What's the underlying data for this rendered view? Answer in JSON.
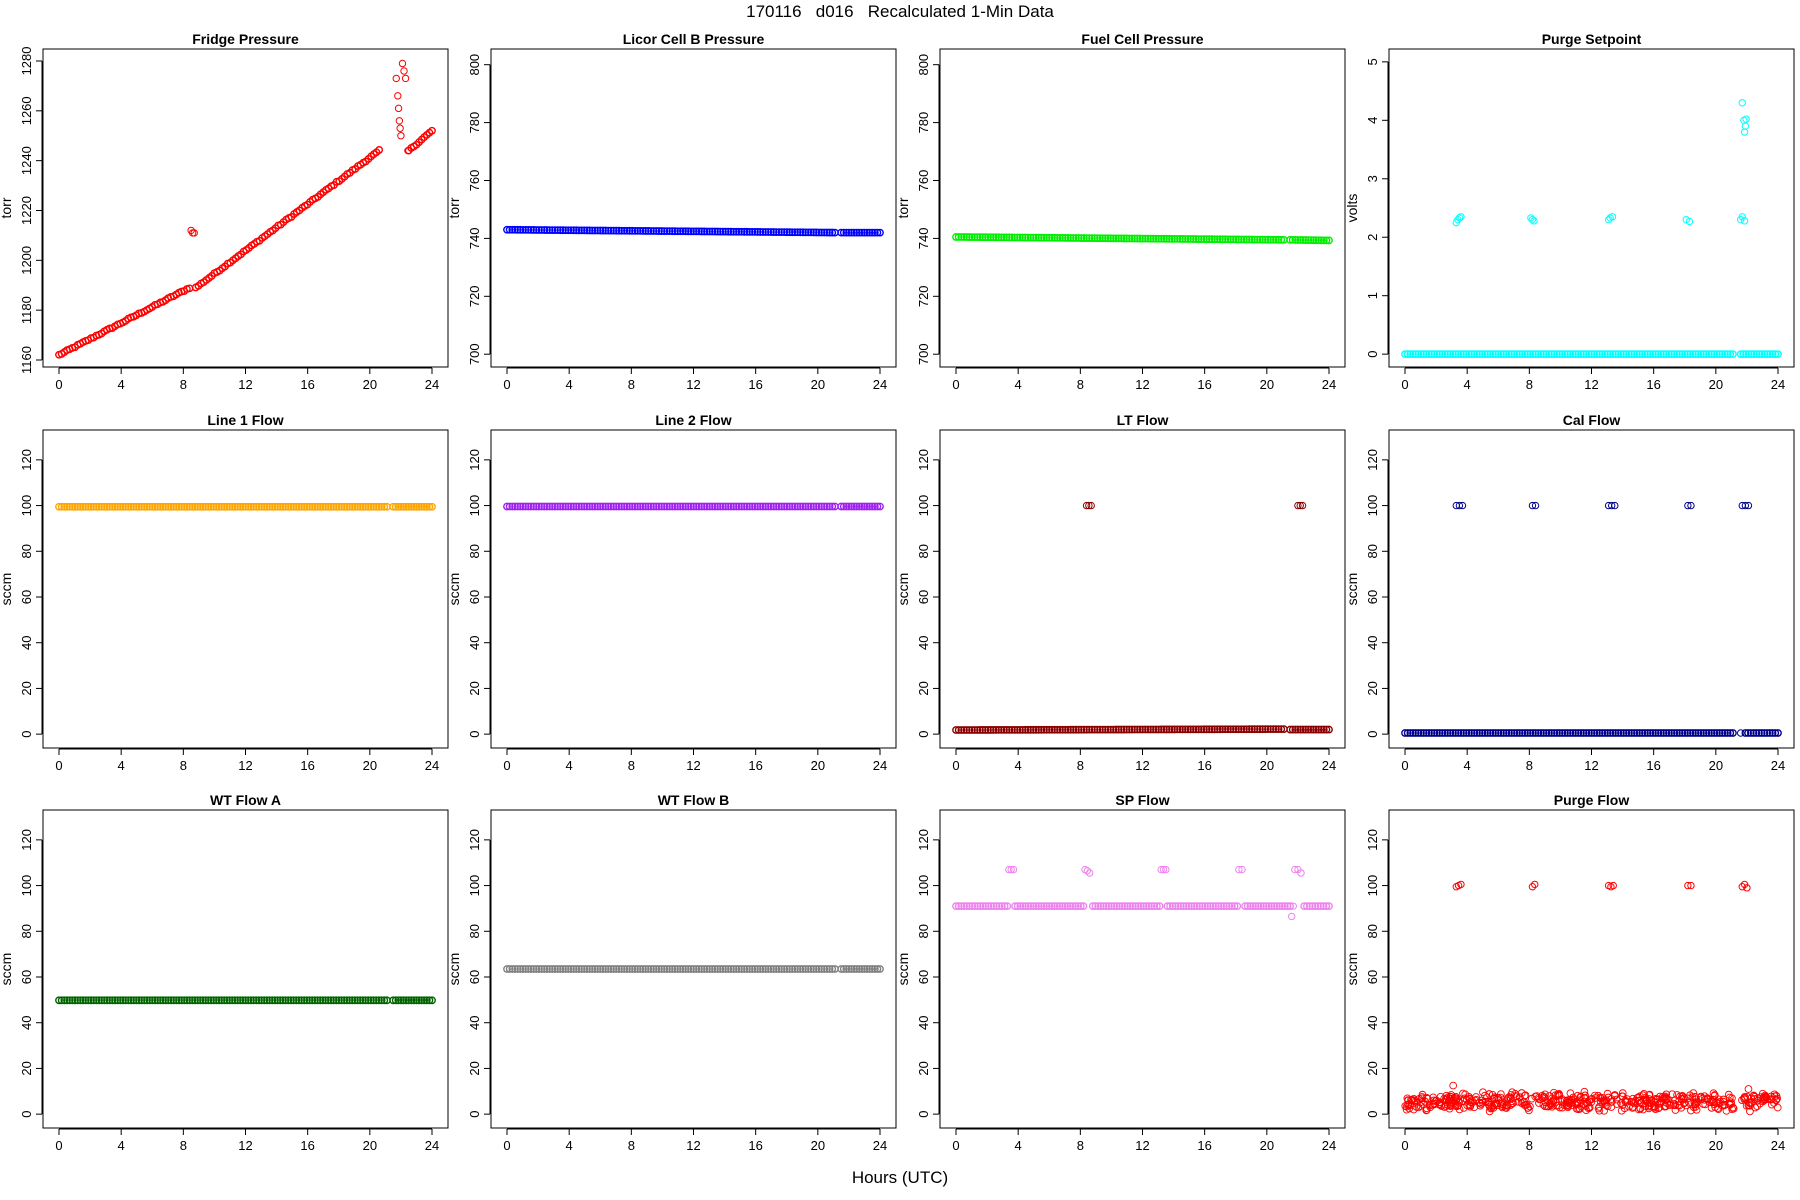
{
  "figure": {
    "title": "170116   d016   Recalculated 1-Min Data",
    "xlabel": "Hours (UTC)"
  },
  "chart_data": [
    {
      "type": "scatter",
      "title": "Fridge Pressure",
      "ylabel": "torr",
      "color": "#ff0000",
      "xlim": [
        0,
        24
      ],
      "ylim": [
        1160,
        1282
      ],
      "xticks": [
        0,
        4,
        8,
        12,
        16,
        20,
        24
      ],
      "yticks": [
        1160,
        1180,
        1200,
        1220,
        1240,
        1260,
        1280
      ],
      "segments": [
        {
          "x0": 0,
          "x1": 8.4,
          "y0": 1162,
          "y1": 1189
        },
        {
          "x0": 8.8,
          "x1": 20.6,
          "y0": 1189,
          "y1": 1244
        },
        {
          "x0": 22.5,
          "x1": 24,
          "y0": 1244,
          "y1": 1252
        }
      ],
      "points": [
        {
          "x": 8.5,
          "y": 1212
        },
        {
          "x": 8.6,
          "y": 1211
        },
        {
          "x": 8.7,
          "y": 1211
        },
        {
          "x": 21.7,
          "y": 1273
        },
        {
          "x": 21.8,
          "y": 1266
        },
        {
          "x": 21.85,
          "y": 1261
        },
        {
          "x": 21.9,
          "y": 1256
        },
        {
          "x": 21.95,
          "y": 1253
        },
        {
          "x": 22.0,
          "y": 1250
        },
        {
          "x": 22.1,
          "y": 1279
        },
        {
          "x": 22.2,
          "y": 1276
        },
        {
          "x": 22.3,
          "y": 1273
        },
        {
          "x": 22.45,
          "y": 1244
        }
      ]
    },
    {
      "type": "scatter",
      "title": "Licor Cell B Pressure",
      "ylabel": "torr",
      "color": "#0000ff",
      "xlim": [
        0,
        24
      ],
      "ylim": [
        698,
        803
      ],
      "xticks": [
        0,
        4,
        8,
        12,
        16,
        20,
        24
      ],
      "yticks": [
        700,
        720,
        740,
        760,
        780,
        800
      ],
      "segments": [
        {
          "x0": 0,
          "x1": 21.1,
          "y0": 743,
          "y1": 742
        },
        {
          "x0": 21.5,
          "x1": 24,
          "y0": 742,
          "y1": 742
        }
      ],
      "points": []
    },
    {
      "type": "scatter",
      "title": "Fuel Cell Pressure",
      "ylabel": "torr",
      "color": "#00ee00",
      "xlim": [
        0,
        24
      ],
      "ylim": [
        698,
        803
      ],
      "xticks": [
        0,
        4,
        8,
        12,
        16,
        20,
        24
      ],
      "yticks": [
        700,
        720,
        740,
        760,
        780,
        800
      ],
      "segments": [
        {
          "x0": 0,
          "x1": 21.1,
          "y0": 740.5,
          "y1": 739.5
        },
        {
          "x0": 21.5,
          "x1": 24,
          "y0": 739.5,
          "y1": 739.3
        }
      ],
      "points": []
    },
    {
      "type": "scatter",
      "title": "Purge Setpoint",
      "ylabel": "volts",
      "color": "#00ffff",
      "xlim": [
        0,
        24
      ],
      "ylim": [
        -0.1,
        5.1
      ],
      "xticks": [
        0,
        4,
        8,
        12,
        16,
        20,
        24
      ],
      "yticks": [
        0,
        1,
        2,
        3,
        4,
        5
      ],
      "segments": [
        {
          "x0": 0,
          "x1": 21.1,
          "y0": 0,
          "y1": 0
        },
        {
          "x0": 21.6,
          "x1": 24,
          "y0": 0,
          "y1": 0
        }
      ],
      "points": [
        {
          "x": 3.3,
          "y": 2.25
        },
        {
          "x": 3.4,
          "y": 2.3
        },
        {
          "x": 3.5,
          "y": 2.33
        },
        {
          "x": 3.6,
          "y": 2.35
        },
        {
          "x": 8.1,
          "y": 2.33
        },
        {
          "x": 8.2,
          "y": 2.3
        },
        {
          "x": 8.3,
          "y": 2.28
        },
        {
          "x": 13.1,
          "y": 2.3
        },
        {
          "x": 13.2,
          "y": 2.33
        },
        {
          "x": 13.35,
          "y": 2.35
        },
        {
          "x": 18.1,
          "y": 2.3
        },
        {
          "x": 18.3,
          "y": 2.27
        },
        {
          "x": 21.6,
          "y": 2.3
        },
        {
          "x": 21.7,
          "y": 2.35
        },
        {
          "x": 21.85,
          "y": 2.28
        },
        {
          "x": 21.7,
          "y": 4.3
        },
        {
          "x": 21.8,
          "y": 4.0
        },
        {
          "x": 21.85,
          "y": 3.8
        },
        {
          "x": 21.9,
          "y": 3.9
        },
        {
          "x": 21.95,
          "y": 4.02
        },
        {
          "x": 21.75,
          "y": 0
        }
      ]
    },
    {
      "type": "scatter",
      "title": "Line 1 Flow",
      "ylabel": "sccm",
      "color": "#ffa500",
      "xlim": [
        0,
        24
      ],
      "ylim": [
        -3,
        130
      ],
      "xticks": [
        0,
        4,
        8,
        12,
        16,
        20,
        24
      ],
      "yticks": [
        0,
        20,
        40,
        60,
        80,
        100,
        120
      ],
      "segments": [
        {
          "x0": 0,
          "x1": 21.1,
          "y0": 99.5,
          "y1": 99.5
        },
        {
          "x0": 21.5,
          "x1": 24,
          "y0": 99.5,
          "y1": 99.5
        }
      ],
      "points": []
    },
    {
      "type": "scatter",
      "title": "Line 2 Flow",
      "ylabel": "sccm",
      "color": "#a020f0",
      "xlim": [
        0,
        24
      ],
      "ylim": [
        -3,
        130
      ],
      "xticks": [
        0,
        4,
        8,
        12,
        16,
        20,
        24
      ],
      "yticks": [
        0,
        20,
        40,
        60,
        80,
        100,
        120
      ],
      "segments": [
        {
          "x0": 0,
          "x1": 21.1,
          "y0": 99.6,
          "y1": 99.6
        },
        {
          "x0": 21.5,
          "x1": 24,
          "y0": 99.6,
          "y1": 99.6
        }
      ],
      "points": []
    },
    {
      "type": "scatter",
      "title": "LT Flow",
      "ylabel": "sccm",
      "color": "#8b0000",
      "xlim": [
        0,
        24
      ],
      "ylim": [
        -3,
        130
      ],
      "xticks": [
        0,
        4,
        8,
        12,
        16,
        20,
        24
      ],
      "yticks": [
        0,
        20,
        40,
        60,
        80,
        100,
        120
      ],
      "segments": [
        {
          "x0": 0,
          "x1": 21.1,
          "y0": 1.8,
          "y1": 2.2
        },
        {
          "x0": 21.5,
          "x1": 24,
          "y0": 2.0,
          "y1": 2.0
        }
      ],
      "points": [
        {
          "x": 8.4,
          "y": 100
        },
        {
          "x": 8.55,
          "y": 100
        },
        {
          "x": 8.7,
          "y": 100
        },
        {
          "x": 22.0,
          "y": 100
        },
        {
          "x": 22.15,
          "y": 100
        },
        {
          "x": 22.3,
          "y": 100
        }
      ]
    },
    {
      "type": "scatter",
      "title": "Cal Flow",
      "ylabel": "sccm",
      "color": "#00008b",
      "xlim": [
        0,
        24
      ],
      "ylim": [
        -3,
        130
      ],
      "xticks": [
        0,
        4,
        8,
        12,
        16,
        20,
        24
      ],
      "yticks": [
        0,
        20,
        40,
        60,
        80,
        100,
        120
      ],
      "segments": [
        {
          "x0": 0,
          "x1": 21.1,
          "y0": 0.5,
          "y1": 0.5
        },
        {
          "x0": 21.9,
          "x1": 24,
          "y0": 0.5,
          "y1": 0.5
        }
      ],
      "points": [
        {
          "x": 3.3,
          "y": 100
        },
        {
          "x": 3.5,
          "y": 100
        },
        {
          "x": 3.7,
          "y": 100
        },
        {
          "x": 8.2,
          "y": 100
        },
        {
          "x": 8.4,
          "y": 100
        },
        {
          "x": 13.1,
          "y": 100
        },
        {
          "x": 13.3,
          "y": 100
        },
        {
          "x": 13.5,
          "y": 100
        },
        {
          "x": 18.2,
          "y": 100
        },
        {
          "x": 18.4,
          "y": 100
        },
        {
          "x": 21.7,
          "y": 100
        },
        {
          "x": 21.9,
          "y": 100
        },
        {
          "x": 22.1,
          "y": 100
        },
        {
          "x": 21.6,
          "y": 0.5
        }
      ]
    },
    {
      "type": "scatter",
      "title": "WT Flow A",
      "ylabel": "sccm",
      "color": "#006400",
      "xlim": [
        0,
        24
      ],
      "ylim": [
        -3,
        130
      ],
      "xticks": [
        0,
        4,
        8,
        12,
        16,
        20,
        24
      ],
      "yticks": [
        0,
        20,
        40,
        60,
        80,
        100,
        120
      ],
      "segments": [
        {
          "x0": 0,
          "x1": 21.1,
          "y0": 49.8,
          "y1": 49.8
        },
        {
          "x0": 21.5,
          "x1": 24,
          "y0": 49.8,
          "y1": 49.8
        }
      ],
      "points": []
    },
    {
      "type": "scatter",
      "title": "WT Flow B",
      "ylabel": "sccm",
      "color": "#808080",
      "xlim": [
        0,
        24
      ],
      "ylim": [
        -3,
        130
      ],
      "xticks": [
        0,
        4,
        8,
        12,
        16,
        20,
        24
      ],
      "yticks": [
        0,
        20,
        40,
        60,
        80,
        100,
        120
      ],
      "segments": [
        {
          "x0": 0,
          "x1": 21.1,
          "y0": 63.5,
          "y1": 63.5
        },
        {
          "x0": 21.5,
          "x1": 24,
          "y0": 63.5,
          "y1": 63.5
        }
      ],
      "points": []
    },
    {
      "type": "scatter",
      "title": "SP Flow",
      "ylabel": "sccm",
      "color": "#ee82ee",
      "xlim": [
        0,
        24
      ],
      "ylim": [
        -3,
        130
      ],
      "xticks": [
        0,
        4,
        8,
        12,
        16,
        20,
        24
      ],
      "yticks": [
        0,
        20,
        40,
        60,
        80,
        100,
        120
      ],
      "segments": [
        {
          "x0": 0,
          "x1": 3.3,
          "y0": 91,
          "y1": 91
        },
        {
          "x0": 3.8,
          "x1": 8.2,
          "y0": 91,
          "y1": 91
        },
        {
          "x0": 8.8,
          "x1": 13.1,
          "y0": 91,
          "y1": 91
        },
        {
          "x0": 13.6,
          "x1": 18.1,
          "y0": 91,
          "y1": 91
        },
        {
          "x0": 18.6,
          "x1": 21.5,
          "y0": 91,
          "y1": 91
        },
        {
          "x0": 22.4,
          "x1": 24,
          "y0": 91,
          "y1": 91
        }
      ],
      "points": [
        {
          "x": 3.4,
          "y": 107
        },
        {
          "x": 3.55,
          "y": 107
        },
        {
          "x": 3.7,
          "y": 107
        },
        {
          "x": 8.3,
          "y": 107
        },
        {
          "x": 8.45,
          "y": 106.5
        },
        {
          "x": 8.6,
          "y": 105.5
        },
        {
          "x": 13.2,
          "y": 107
        },
        {
          "x": 13.35,
          "y": 107
        },
        {
          "x": 13.5,
          "y": 107
        },
        {
          "x": 18.2,
          "y": 107
        },
        {
          "x": 18.4,
          "y": 107
        },
        {
          "x": 21.8,
          "y": 107
        },
        {
          "x": 22.0,
          "y": 107
        },
        {
          "x": 22.2,
          "y": 105.5
        },
        {
          "x": 21.6,
          "y": 86.5
        },
        {
          "x": 21.7,
          "y": 91
        }
      ]
    },
    {
      "type": "scatter",
      "title": "Purge Flow",
      "ylabel": "sccm",
      "color": "#ff0000",
      "xlim": [
        0,
        24
      ],
      "ylim": [
        -3,
        130
      ],
      "xticks": [
        0,
        4,
        8,
        12,
        16,
        20,
        24
      ],
      "yticks": [
        0,
        20,
        40,
        60,
        80,
        100,
        120
      ],
      "segments": [],
      "points": [
        {
          "x": 3.3,
          "y": 99.5
        },
        {
          "x": 3.45,
          "y": 100
        },
        {
          "x": 3.6,
          "y": 100.5
        },
        {
          "x": 8.2,
          "y": 99.5
        },
        {
          "x": 8.35,
          "y": 100.5
        },
        {
          "x": 13.1,
          "y": 100
        },
        {
          "x": 13.25,
          "y": 99.5
        },
        {
          "x": 13.4,
          "y": 100
        },
        {
          "x": 18.2,
          "y": 100
        },
        {
          "x": 18.4,
          "y": 100
        },
        {
          "x": 21.7,
          "y": 99.5
        },
        {
          "x": 21.85,
          "y": 100.5
        },
        {
          "x": 22.0,
          "y": 99
        }
      ],
      "noise_band": {
        "x0": 0,
        "x1": 24,
        "center": 5.5,
        "spread": 4.5,
        "spikes": [
          {
            "x": 3.1,
            "y": 12.5
          },
          {
            "x": 22.1,
            "y": 11
          }
        ]
      }
    }
  ]
}
